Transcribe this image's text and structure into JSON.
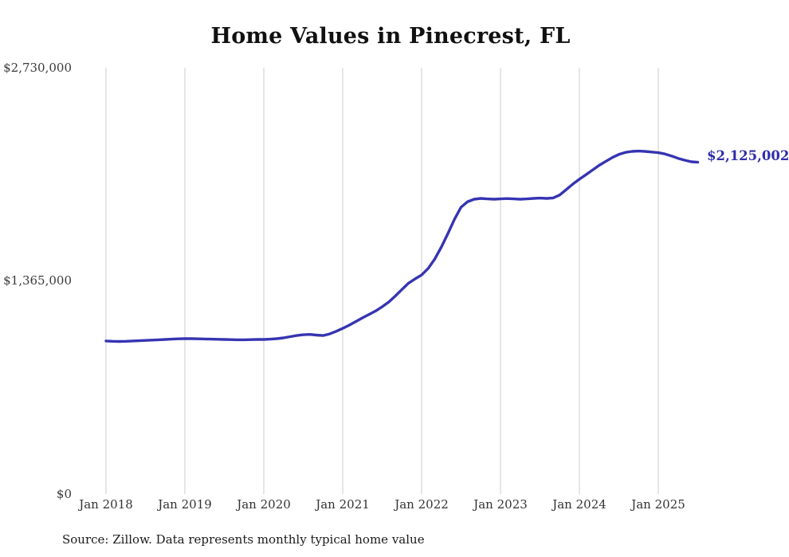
{
  "title": "Home Values in Pinecrest, FL",
  "source": "Source: Zillow. Data represents monthly typical home value",
  "end_label": "$2,125,002",
  "colors": {
    "line": "#3634b2",
    "grid": "#cccccc",
    "end_label": "#2f2daa",
    "axis_text": "#333333"
  },
  "chart_data": {
    "type": "line",
    "title": "Home Values in Pinecrest, FL",
    "xlabel": "",
    "ylabel": "",
    "ylim": [
      0,
      2730000
    ],
    "grid": "vertical-only",
    "legend": "none",
    "ytick_labels": [
      "$2,730,000",
      "$1,365,000",
      "$0"
    ],
    "ytick_values": [
      2730000,
      1365000,
      0
    ],
    "xticks": [
      "Jan 2018",
      "Jan 2019",
      "Jan 2020",
      "Jan 2021",
      "Jan 2022",
      "Jan 2023",
      "Jan 2024",
      "Jan 2025"
    ],
    "last_value_label": "$2,125,002",
    "months": [
      "2018-01",
      "2018-02",
      "2018-03",
      "2018-04",
      "2018-05",
      "2018-06",
      "2018-07",
      "2018-08",
      "2018-09",
      "2018-10",
      "2018-11",
      "2018-12",
      "2019-01",
      "2019-02",
      "2019-03",
      "2019-04",
      "2019-05",
      "2019-06",
      "2019-07",
      "2019-08",
      "2019-09",
      "2019-10",
      "2019-11",
      "2019-12",
      "2020-01",
      "2020-02",
      "2020-03",
      "2020-04",
      "2020-05",
      "2020-06",
      "2020-07",
      "2020-08",
      "2020-09",
      "2020-10",
      "2020-11",
      "2020-12",
      "2021-01",
      "2021-02",
      "2021-03",
      "2021-04",
      "2021-05",
      "2021-06",
      "2021-07",
      "2021-08",
      "2021-09",
      "2021-10",
      "2021-11",
      "2021-12",
      "2022-01",
      "2022-02",
      "2022-03",
      "2022-04",
      "2022-05",
      "2022-06",
      "2022-07",
      "2022-08",
      "2022-09",
      "2022-10",
      "2022-11",
      "2022-12",
      "2023-01",
      "2023-02",
      "2023-03",
      "2023-04",
      "2023-05",
      "2023-06",
      "2023-07",
      "2023-08",
      "2023-09",
      "2023-10",
      "2023-11",
      "2023-12",
      "2024-01",
      "2024-02",
      "2024-03",
      "2024-04",
      "2024-05",
      "2024-06",
      "2024-07",
      "2024-08",
      "2024-09",
      "2024-10",
      "2024-11",
      "2024-12",
      "2025-01",
      "2025-02",
      "2025-03",
      "2025-04",
      "2025-05",
      "2025-06",
      "2025-07"
    ],
    "values": [
      980000,
      978000,
      977000,
      978000,
      980000,
      982000,
      984000,
      986000,
      988000,
      990000,
      992000,
      994000,
      995000,
      995000,
      994000,
      993000,
      992000,
      991000,
      990000,
      989000,
      988000,
      988000,
      989000,
      990000,
      990000,
      992000,
      995000,
      1000000,
      1008000,
      1015000,
      1020000,
      1022000,
      1018000,
      1015000,
      1025000,
      1042000,
      1061000,
      1082000,
      1105000,
      1128000,
      1150000,
      1172000,
      1199000,
      1230000,
      1268000,
      1310000,
      1350000,
      1378000,
      1403000,
      1445000,
      1505000,
      1582000,
      1668000,
      1760000,
      1837000,
      1872000,
      1888000,
      1893000,
      1890000,
      1888000,
      1890000,
      1892000,
      1890000,
      1888000,
      1890000,
      1893000,
      1895000,
      1893000,
      1896000,
      1915000,
      1950000,
      1985000,
      2016000,
      2045000,
      2075000,
      2105000,
      2130000,
      2155000,
      2175000,
      2188000,
      2194000,
      2196000,
      2194000,
      2190000,
      2186000,
      2178000,
      2165000,
      2150000,
      2138000,
      2128000,
      2125002
    ]
  }
}
